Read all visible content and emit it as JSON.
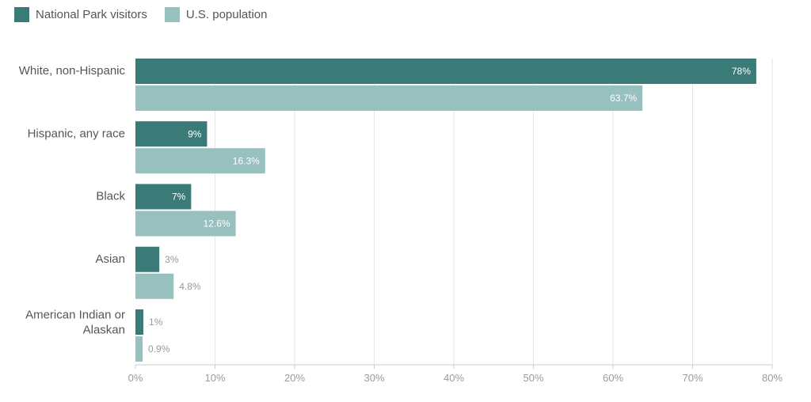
{
  "legend": [
    {
      "label": "National Park visitors",
      "color": "#3a7b78"
    },
    {
      "label": "U.S. population",
      "color": "#97c0be"
    }
  ],
  "chart_data": {
    "type": "bar",
    "orientation": "horizontal",
    "categories": [
      "White, non-Hispanic",
      "Hispanic, any race",
      "Black",
      "Asian",
      "American Indian or Alaskan"
    ],
    "category_lines": [
      [
        "White, non-Hispanic"
      ],
      [
        "Hispanic, any race"
      ],
      [
        "Black"
      ],
      [
        "Asian"
      ],
      [
        "American Indian or",
        "Alaskan"
      ]
    ],
    "series": [
      {
        "name": "National Park visitors",
        "color": "#3a7b78",
        "values": [
          78,
          9,
          7,
          3,
          1
        ],
        "labels": [
          "78%",
          "9%",
          "7%",
          "3%",
          "1%"
        ]
      },
      {
        "name": "U.S. population",
        "color": "#97c0be",
        "values": [
          63.7,
          16.3,
          12.6,
          4.8,
          0.9
        ],
        "labels": [
          "63.7%",
          "16.3%",
          "12.6%",
          "4.8%",
          "0.9%"
        ]
      }
    ],
    "xlim": [
      0,
      80
    ],
    "xticks": [
      0,
      10,
      20,
      30,
      40,
      50,
      60,
      70,
      80
    ],
    "xtick_labels": [
      "0%",
      "10%",
      "20%",
      "30%",
      "40%",
      "50%",
      "60%",
      "70%",
      "80%"
    ],
    "grid": true,
    "legend_position": "top-left",
    "xlabel": "",
    "ylabel": "",
    "title": ""
  }
}
